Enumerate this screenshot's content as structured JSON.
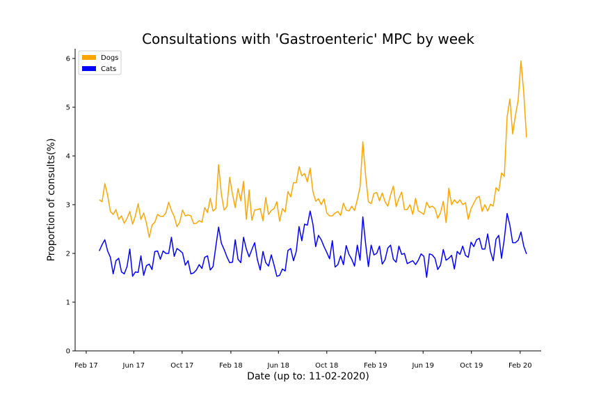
{
  "chart_data": {
    "type": "line",
    "title": "Consultations with 'Gastroenteric' MPC by week",
    "xlabel": "Date (up to: 11-02-2020)",
    "ylabel": "Proportion of consults(%)",
    "ylim": [
      0,
      6.2
    ],
    "yticks": [
      0,
      1,
      2,
      3,
      4,
      5,
      6
    ],
    "xlim": [
      "2017-01-04",
      "2020-03-25"
    ],
    "xticks": [
      {
        "date": "2017-02-01",
        "label": "Feb 17"
      },
      {
        "date": "2017-06-01",
        "label": "Jun 17"
      },
      {
        "date": "2017-10-01",
        "label": "Oct 17"
      },
      {
        "date": "2018-02-01",
        "label": "Feb 18"
      },
      {
        "date": "2018-06-01",
        "label": "Jun 18"
      },
      {
        "date": "2018-10-01",
        "label": "Oct 18"
      },
      {
        "date": "2019-02-01",
        "label": "Feb 19"
      },
      {
        "date": "2019-06-01",
        "label": "Jun 19"
      },
      {
        "date": "2019-10-01",
        "label": "Oct 19"
      },
      {
        "date": "2020-02-01",
        "label": "Feb 20"
      }
    ],
    "x_start": "2017-03-06",
    "x_step_days": 7,
    "legend_position": "top-left",
    "grid": false,
    "series": [
      {
        "name": "Dogs",
        "color": "#FFA500",
        "values": [
          3.1,
          3.06,
          3.43,
          3.19,
          2.86,
          2.8,
          2.9,
          2.7,
          2.77,
          2.62,
          2.72,
          2.86,
          2.6,
          2.77,
          3.02,
          2.7,
          2.83,
          2.62,
          2.33,
          2.58,
          2.64,
          2.8,
          2.76,
          2.76,
          2.83,
          3.05,
          2.88,
          2.76,
          2.55,
          2.64,
          2.89,
          2.77,
          2.79,
          2.77,
          2.61,
          2.62,
          2.67,
          2.64,
          2.94,
          2.84,
          3.13,
          2.87,
          2.92,
          3.82,
          3.22,
          2.89,
          2.96,
          3.56,
          3.22,
          2.94,
          3.33,
          3.08,
          3.48,
          2.7,
          3.3,
          2.68,
          2.89,
          2.9,
          2.92,
          2.67,
          3.15,
          2.8,
          2.88,
          2.92,
          3.06,
          2.66,
          2.92,
          2.85,
          3.27,
          3.16,
          3.45,
          3.45,
          3.78,
          3.59,
          3.64,
          3.47,
          3.75,
          3.27,
          3.07,
          3.12,
          3.0,
          3.12,
          2.83,
          2.77,
          2.77,
          2.83,
          2.86,
          2.78,
          3.03,
          2.89,
          2.87,
          2.97,
          2.88,
          3.1,
          3.36,
          4.29,
          3.6,
          3.06,
          3.02,
          3.23,
          3.25,
          3.08,
          3.24,
          3.06,
          2.97,
          3.2,
          3.38,
          2.96,
          3.13,
          3.26,
          2.9,
          2.9,
          3.0,
          2.8,
          3.13,
          2.87,
          2.84,
          2.8,
          3.05,
          2.94,
          2.97,
          2.92,
          2.72,
          2.84,
          3.07,
          2.63,
          3.34,
          3.0,
          3.1,
          3.03,
          3.1,
          3.0,
          3.04,
          2.7,
          2.92,
          3.03,
          3.14,
          3.17,
          2.86,
          3.0,
          2.87,
          3.01,
          2.97,
          3.35,
          3.28,
          3.65,
          3.58,
          4.8,
          5.17,
          4.45,
          4.83,
          5.15,
          5.95,
          5.3,
          4.38
        ]
      },
      {
        "name": "Cats",
        "color": "#0000FF",
        "values": [
          2.05,
          2.18,
          2.28,
          2.05,
          1.92,
          1.58,
          1.85,
          1.9,
          1.62,
          1.58,
          1.73,
          2.09,
          1.53,
          1.62,
          1.61,
          1.95,
          1.55,
          1.75,
          1.78,
          1.67,
          2.04,
          2.05,
          1.88,
          2.05,
          2.0,
          2.0,
          2.33,
          1.94,
          2.1,
          2.06,
          2.01,
          1.76,
          1.85,
          1.58,
          1.6,
          1.66,
          1.77,
          1.69,
          1.92,
          1.95,
          1.66,
          1.73,
          2.14,
          2.54,
          2.21,
          2.08,
          1.93,
          1.81,
          1.82,
          2.28,
          1.88,
          1.81,
          2.33,
          2.09,
          1.93,
          2.08,
          2.22,
          1.87,
          1.66,
          2.04,
          1.81,
          1.74,
          1.97,
          1.76,
          1.53,
          1.55,
          1.68,
          1.64,
          2.06,
          2.1,
          1.85,
          2.04,
          2.55,
          2.26,
          2.6,
          2.58,
          2.87,
          2.6,
          2.14,
          2.37,
          2.28,
          2.14,
          2.02,
          1.89,
          2.26,
          1.72,
          1.77,
          1.95,
          1.77,
          2.16,
          1.98,
          1.88,
          1.74,
          2.17,
          1.86,
          2.75,
          2.2,
          1.73,
          2.17,
          1.97,
          2.0,
          2.15,
          1.78,
          1.87,
          2.11,
          2.17,
          1.88,
          1.82,
          2.15,
          1.98,
          2.0,
          1.79,
          1.82,
          1.85,
          1.77,
          1.86,
          1.99,
          1.94,
          1.51,
          1.99,
          1.97,
          1.9,
          1.67,
          1.76,
          2.08,
          1.86,
          1.9,
          1.96,
          1.68,
          2.04,
          1.98,
          2.15,
          1.96,
          1.92,
          2.23,
          2.14,
          2.28,
          2.31,
          2.09,
          2.09,
          2.4,
          2.04,
          1.85,
          2.29,
          2.37,
          1.9,
          2.3,
          2.82,
          2.58,
          2.22,
          2.22,
          2.27,
          2.44,
          2.15,
          1.99
        ]
      }
    ]
  }
}
